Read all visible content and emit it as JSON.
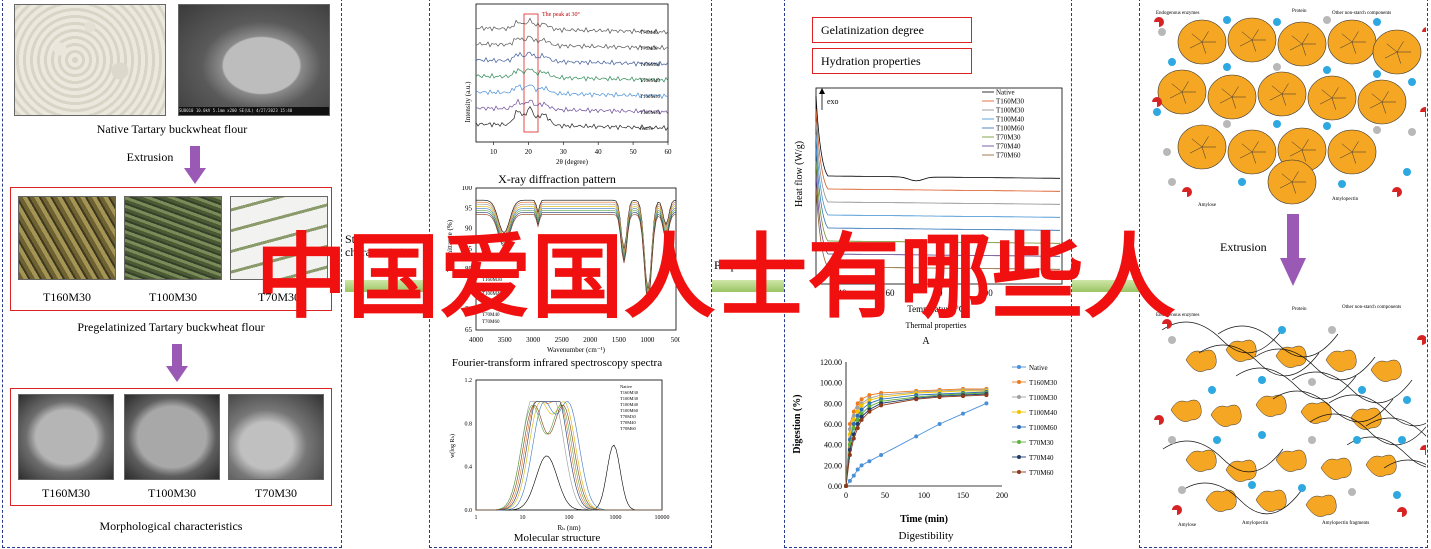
{
  "panel1": {
    "native_caption": "Native Tartary buckwheat flour",
    "extrusion_label": "Extrusion",
    "pregel_caption": "Pregelatinized Tartary buckwheat flour",
    "morph_caption": "Morphological characteristics",
    "pregel_samples": [
      "T160M30",
      "T100M30",
      "T70M30"
    ],
    "morph_samples": [
      "T160M30",
      "T100M30",
      "T70M30"
    ],
    "sem_footer": "SU8010 10.0kV 5.1mm x200 SE(UL) 4/27/2023 15:40"
  },
  "side_labels": {
    "structural": "Structural characteristics",
    "properties": "Properties"
  },
  "xrd": {
    "caption": "X-ray diffraction pattern",
    "peak_note": "The peak at 30°",
    "ylabel": "Intensity (a.u.)",
    "xlabel": "2θ (degree)",
    "xticks": [
      "10",
      "20",
      "30",
      "40",
      "50",
      "60"
    ],
    "series": [
      "T70M40",
      "T70M30",
      "T100M60",
      "T100M40",
      "T100M30",
      "T160M30",
      "Native"
    ]
  },
  "ftir": {
    "caption": "Fourier-transform infrared spectroscopy spectra",
    "ylabel": "Transmittance (%)",
    "xlabel": "Wavenumber (cm⁻¹)",
    "yticks": [
      "100",
      "95",
      "90",
      "85",
      "80",
      "75",
      "70",
      "65"
    ],
    "xticks": [
      "4000",
      "3500",
      "3000",
      "2500",
      "2000",
      "1500",
      "1000",
      "500"
    ],
    "legend": [
      "Native",
      "T160M30",
      "T100M30",
      "T100M40",
      "T100M60",
      "T70M30",
      "T70M40",
      "T70M60"
    ]
  },
  "mol": {
    "caption": "Molecular structure",
    "ylabel": "w(log Rₕ)",
    "xlabel": "Rₕ (nm)",
    "yticks": [
      "1.2",
      "0.8",
      "0.4",
      "0.0"
    ],
    "xticks": [
      "1",
      "10",
      "100",
      "1000",
      "10000"
    ],
    "legend": [
      "Native",
      "T160M30",
      "T100M30",
      "T100M40",
      "T100M60",
      "T70M30",
      "T70M40",
      "T70M60"
    ]
  },
  "dsc": {
    "gel_label": "Gelatinization degree",
    "hydration_label": "Hydration properties",
    "exo": "exo",
    "ylabel": "Heat flow (W/g)",
    "xlabel": "Temperature/°C",
    "xticks": [
      "40",
      "60",
      "80",
      "100"
    ],
    "legend": [
      "Native",
      "T160M30",
      "T100M30",
      "T100M40",
      "T100M60",
      "T70M30",
      "T70M40",
      "T70M60"
    ],
    "caption": "Thermal properties",
    "panel_letter": "A"
  },
  "digestion": {
    "caption": "Digestibility",
    "ylabel": "Digestion (%)",
    "xlabel": "Time (min)",
    "yticks": [
      "120.00",
      "100.00",
      "80.00",
      "60.00",
      "40.00",
      "20.00",
      "0.00"
    ],
    "xticks": [
      "0",
      "50",
      "100",
      "150",
      "200"
    ],
    "legend": [
      "Native",
      "T160M30",
      "T100M30",
      "T100M40",
      "T100M60",
      "T70M30",
      "T70M40",
      "T70M60"
    ]
  },
  "schematic": {
    "top_labels": [
      "Endogenous enzymes",
      "Protein",
      "Other non-starch components"
    ],
    "top_bottom_labels": [
      "Amylose",
      "Amylopectin"
    ],
    "extrusion_label": "Extrusion",
    "bottom_top_labels": [
      "Endogenous enzymes",
      "Protein",
      "Other non-starch components"
    ],
    "bottom_labels": [
      "Amylose",
      "Amylopectin",
      "Amylopectin fragments"
    ]
  },
  "overlay_text": "中国爱国人士有哪些人",
  "colors": {
    "panel_border": "#2a3b8f",
    "red_box": "#d22222",
    "overlay": "#f01010",
    "starch": "#f5a623",
    "protein": "#2ea8e0",
    "enzyme": "#d62424",
    "arrow": "#9b59b6"
  },
  "chart_data": [
    {
      "type": "line",
      "title": "",
      "xlabel": "2θ (degree)",
      "ylabel": "Intensity (a.u.)",
      "xlim": [
        5,
        60
      ],
      "series": [
        {
          "name": "T70M40"
        },
        {
          "name": "T70M30"
        },
        {
          "name": "T100M60"
        },
        {
          "name": "T100M40"
        },
        {
          "name": "T100M30"
        },
        {
          "name": "T160M30"
        },
        {
          "name": "Native"
        }
      ]
    },
    {
      "type": "line",
      "xlabel": "Time (min)",
      "ylabel": "Digestion (%)",
      "xlim": [
        0,
        200
      ],
      "ylim": [
        0,
        120
      ],
      "x": [
        0,
        5,
        10,
        15,
        20,
        30,
        45,
        90,
        120,
        150,
        180
      ],
      "series": [
        {
          "name": "Native",
          "color": "#4a90d9",
          "values": [
            0,
            5,
            10,
            16,
            20,
            24,
            30,
            48,
            60,
            70,
            80
          ]
        },
        {
          "name": "T160M30",
          "color": "#f07a1a",
          "values": [
            0,
            60,
            72,
            80,
            84,
            88,
            90,
            92,
            93,
            94,
            94
          ]
        },
        {
          "name": "T100M30",
          "color": "#a0a0a0",
          "values": [
            0,
            55,
            68,
            76,
            80,
            85,
            88,
            91,
            92,
            93,
            93
          ]
        },
        {
          "name": "T100M40",
          "color": "#f2c200",
          "values": [
            0,
            50,
            64,
            72,
            78,
            83,
            86,
            90,
            91,
            92,
            92
          ]
        },
        {
          "name": "T100M60",
          "color": "#2d6fb5",
          "values": [
            0,
            45,
            60,
            68,
            74,
            80,
            84,
            88,
            89,
            90,
            91
          ]
        },
        {
          "name": "T70M30",
          "color": "#60b040",
          "values": [
            0,
            40,
            56,
            64,
            70,
            77,
            82,
            86,
            88,
            89,
            90
          ]
        },
        {
          "name": "T70M40",
          "color": "#203a6b",
          "values": [
            0,
            35,
            50,
            60,
            67,
            74,
            80,
            85,
            87,
            88,
            89
          ]
        },
        {
          "name": "T70M60",
          "color": "#8b3a1a",
          "values": [
            0,
            30,
            46,
            56,
            64,
            72,
            78,
            84,
            86,
            87,
            88
          ]
        }
      ]
    }
  ]
}
